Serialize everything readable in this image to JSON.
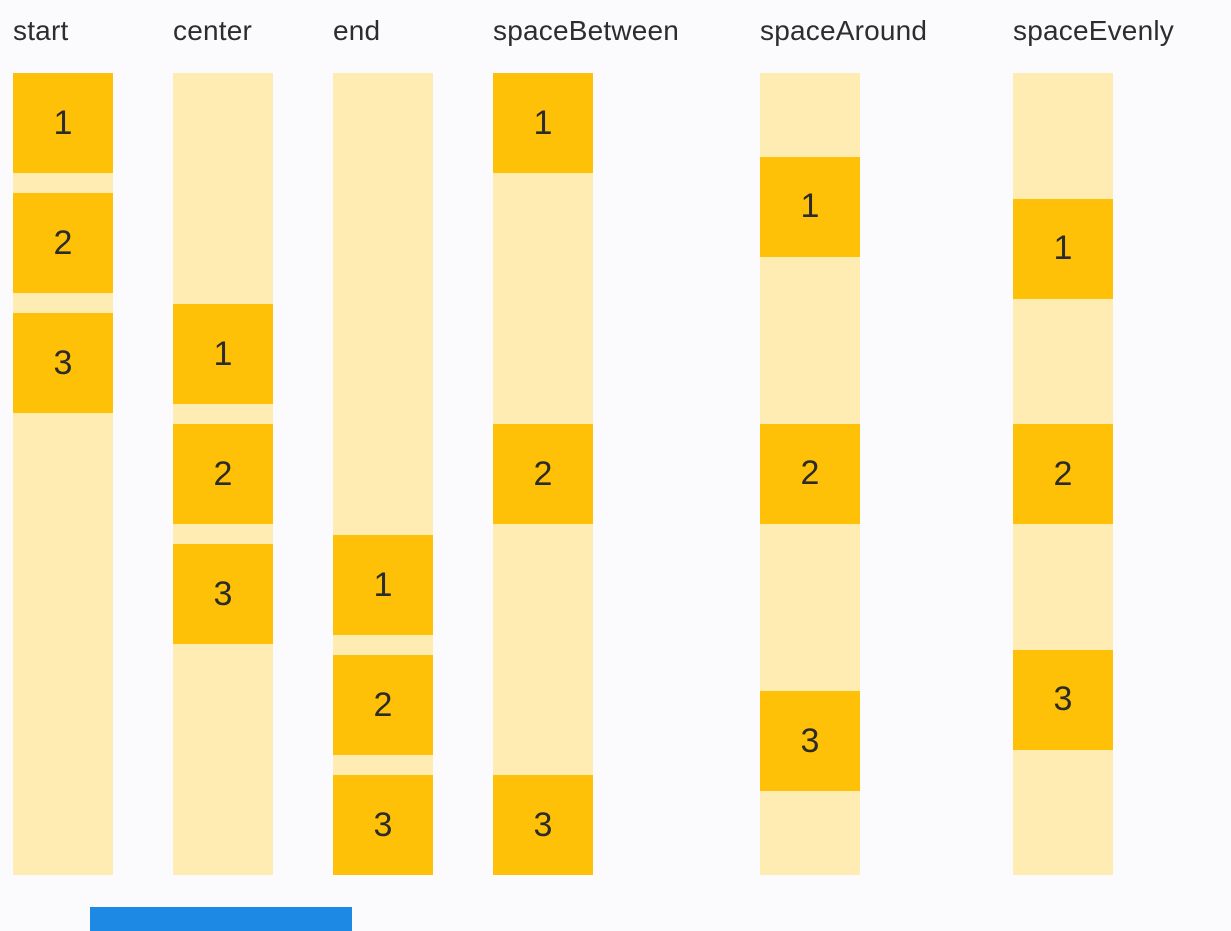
{
  "page": {
    "description": "flex justify-content alignment demo with six columns"
  },
  "colors": {
    "page-bg": "#FBFBFE",
    "track": "#FFECB3",
    "item": "#FFC107",
    "label-text": "#2D2D2D",
    "number-text": "#2B2B2B",
    "partial-blue": "#1E88E5"
  },
  "columns": [
    {
      "label": "start",
      "justify": "flex-start",
      "items": [
        "1",
        "2",
        "3"
      ]
    },
    {
      "label": "center",
      "justify": "center",
      "items": [
        "1",
        "2",
        "3"
      ]
    },
    {
      "label": "end",
      "justify": "flex-end",
      "items": [
        "1",
        "2",
        "3"
      ]
    },
    {
      "label": "spaceBetween",
      "justify": "space-between",
      "items": [
        "1",
        "2",
        "3"
      ]
    },
    {
      "label": "spaceAround",
      "justify": "space-around",
      "items": [
        "1",
        "2",
        "3"
      ]
    },
    {
      "label": "spaceEvenly",
      "justify": "space-evenly",
      "items": [
        "1",
        "2",
        "3"
      ]
    }
  ]
}
